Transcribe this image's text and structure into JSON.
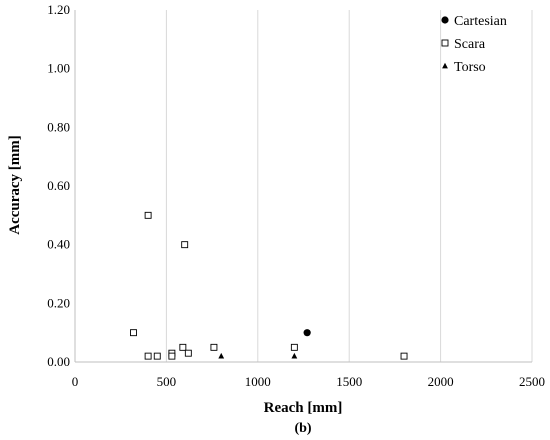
{
  "chart_data": {
    "type": "scatter",
    "title": "",
    "xlabel": "Reach [mm]",
    "ylabel": "Accuracy [mm]",
    "caption": "(b)",
    "xlim": [
      0,
      2500
    ],
    "ylim": [
      0,
      1.2
    ],
    "x_ticks": [
      "0",
      "500",
      "1000",
      "1500",
      "2000",
      "2500"
    ],
    "y_ticks": [
      "0.00",
      "0.20",
      "0.40",
      "0.60",
      "0.80",
      "1.00",
      "1.20"
    ],
    "grid": "vertical",
    "legend_position": "top-right",
    "series": [
      {
        "name": "Cartesian",
        "marker": "filled-circle",
        "color": "#000000",
        "points": [
          [
            1270,
            0.1
          ]
        ]
      },
      {
        "name": "Scara",
        "marker": "open-square",
        "color": "#000000",
        "points": [
          [
            320,
            0.1
          ],
          [
            400,
            0.5
          ],
          [
            400,
            0.02
          ],
          [
            450,
            0.02
          ],
          [
            530,
            0.03
          ],
          [
            530,
            0.02
          ],
          [
            590,
            0.05
          ],
          [
            600,
            0.4
          ],
          [
            620,
            0.03
          ],
          [
            760,
            0.05
          ],
          [
            1200,
            0.05
          ],
          [
            1800,
            0.02
          ]
        ]
      },
      {
        "name": "Torso",
        "marker": "filled-triangle",
        "color": "#000000",
        "points": [
          [
            800,
            0.02
          ],
          [
            1200,
            0.02
          ]
        ]
      }
    ]
  }
}
